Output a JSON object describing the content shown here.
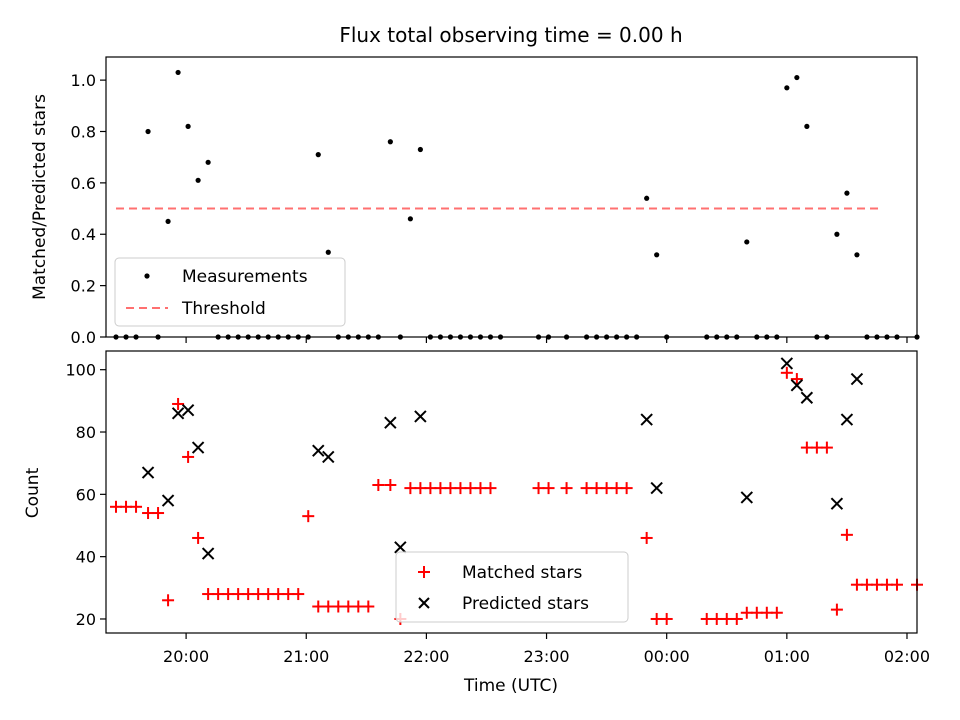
{
  "chart_data": [
    {
      "type": "scatter",
      "title": "Flux total observing time = 0.00 h",
      "xlabel": "",
      "ylabel": "Matched/Predicted stars",
      "xlim": [
        "19:20",
        "02:05"
      ],
      "ylim": [
        0,
        1.09
      ],
      "yticks": [
        "0.0",
        "0.2",
        "0.4",
        "0.6",
        "0.8",
        "1.0"
      ],
      "grid": false,
      "legend": {
        "placement": "lower-left",
        "entries": [
          "Measurements",
          "Threshold"
        ]
      },
      "threshold": {
        "name": "Threshold",
        "y": 0.5,
        "x_from": "19:25",
        "x_to": "01:47",
        "color": "#ff7070"
      },
      "series": [
        {
          "name": "Measurements",
          "color": "#000000",
          "points": [
            [
              "19:25",
              0
            ],
            [
              "19:30",
              0
            ],
            [
              "19:35",
              0
            ],
            [
              "19:41",
              0.8
            ],
            [
              "19:46",
              0
            ],
            [
              "19:51",
              0.45
            ],
            [
              "19:56",
              1.03
            ],
            [
              "20:01",
              0.82
            ],
            [
              "20:06",
              0.61
            ],
            [
              "20:11",
              0.68
            ],
            [
              "20:16",
              0
            ],
            [
              "20:21",
              0
            ],
            [
              "20:26",
              0
            ],
            [
              "20:31",
              0
            ],
            [
              "20:36",
              0
            ],
            [
              "20:41",
              0
            ],
            [
              "20:46",
              0
            ],
            [
              "20:51",
              0
            ],
            [
              "20:56",
              0
            ],
            [
              "21:01",
              0
            ],
            [
              "21:06",
              0.71
            ],
            [
              "21:11",
              0.33
            ],
            [
              "21:16",
              0
            ],
            [
              "21:21",
              0
            ],
            [
              "21:26",
              0
            ],
            [
              "21:31",
              0
            ],
            [
              "21:36",
              0
            ],
            [
              "21:42",
              0.76
            ],
            [
              "21:47",
              0
            ],
            [
              "21:52",
              0.46
            ],
            [
              "21:57",
              0.73
            ],
            [
              "22:02",
              0
            ],
            [
              "22:07",
              0
            ],
            [
              "22:12",
              0
            ],
            [
              "22:17",
              0
            ],
            [
              "22:22",
              0
            ],
            [
              "22:27",
              0
            ],
            [
              "22:32",
              0
            ],
            [
              "22:37",
              0
            ],
            [
              "22:56",
              0
            ],
            [
              "23:01",
              0
            ],
            [
              "23:10",
              0
            ],
            [
              "23:20",
              0
            ],
            [
              "23:25",
              0
            ],
            [
              "23:30",
              0
            ],
            [
              "23:35",
              0
            ],
            [
              "23:40",
              0
            ],
            [
              "23:45",
              0
            ],
            [
              "23:50",
              0.54
            ],
            [
              "23:55",
              0.32
            ],
            [
              "00:00",
              0
            ],
            [
              "00:20",
              0
            ],
            [
              "00:25",
              0
            ],
            [
              "00:30",
              0
            ],
            [
              "00:35",
              0
            ],
            [
              "00:40",
              0.37
            ],
            [
              "00:45",
              0
            ],
            [
              "00:50",
              0
            ],
            [
              "00:55",
              0
            ],
            [
              "01:00",
              0.97
            ],
            [
              "01:05",
              1.01
            ],
            [
              "01:10",
              0.82
            ],
            [
              "01:15",
              0
            ],
            [
              "01:20",
              0
            ],
            [
              "01:25",
              0.4
            ],
            [
              "01:30",
              0.56
            ],
            [
              "01:35",
              0.32
            ],
            [
              "01:40",
              0
            ],
            [
              "01:45",
              0
            ],
            [
              "01:50",
              0
            ],
            [
              "01:55",
              0
            ],
            [
              "02:05",
              0
            ]
          ]
        }
      ]
    },
    {
      "type": "scatter",
      "title": "",
      "xlabel": "Time (UTC)",
      "ylabel": "Count",
      "xlim": [
        "19:20",
        "02:05"
      ],
      "ylim": [
        15.5,
        106
      ],
      "xticks": [
        "20:00",
        "21:00",
        "22:00",
        "23:00",
        "00:00",
        "01:00",
        "02:00"
      ],
      "yticks": [
        "20",
        "40",
        "60",
        "80",
        "100"
      ],
      "grid": false,
      "legend": {
        "placement": "lower-center",
        "entries": [
          "Matched stars",
          "Predicted stars"
        ]
      },
      "series": [
        {
          "name": "Matched stars",
          "marker": "plus",
          "color": "#ff0000",
          "points": [
            [
              "19:25",
              56
            ],
            [
              "19:30",
              56
            ],
            [
              "19:35",
              56
            ],
            [
              "19:41",
              54
            ],
            [
              "19:46",
              54
            ],
            [
              "19:51",
              26
            ],
            [
              "19:56",
              89
            ],
            [
              "20:01",
              72
            ],
            [
              "20:06",
              46
            ],
            [
              "20:11",
              28
            ],
            [
              "20:16",
              28
            ],
            [
              "20:21",
              28
            ],
            [
              "20:26",
              28
            ],
            [
              "20:31",
              28
            ],
            [
              "20:36",
              28
            ],
            [
              "20:41",
              28
            ],
            [
              "20:46",
              28
            ],
            [
              "20:51",
              28
            ],
            [
              "20:56",
              28
            ],
            [
              "21:01",
              53
            ],
            [
              "21:06",
              24
            ],
            [
              "21:11",
              24
            ],
            [
              "21:16",
              24
            ],
            [
              "21:21",
              24
            ],
            [
              "21:26",
              24
            ],
            [
              "21:31",
              24
            ],
            [
              "21:36",
              63
            ],
            [
              "21:42",
              63
            ],
            [
              "21:47",
              20
            ],
            [
              "21:52",
              62
            ],
            [
              "21:57",
              62
            ],
            [
              "22:02",
              62
            ],
            [
              "22:07",
              62
            ],
            [
              "22:12",
              62
            ],
            [
              "22:17",
              62
            ],
            [
              "22:22",
              62
            ],
            [
              "22:27",
              62
            ],
            [
              "22:32",
              62
            ],
            [
              "22:56",
              62
            ],
            [
              "23:01",
              62
            ],
            [
              "23:10",
              62
            ],
            [
              "23:20",
              62
            ],
            [
              "23:25",
              62
            ],
            [
              "23:30",
              62
            ],
            [
              "23:35",
              62
            ],
            [
              "23:40",
              62
            ],
            [
              "23:50",
              46
            ],
            [
              "23:55",
              20
            ],
            [
              "00:00",
              20
            ],
            [
              "00:20",
              20
            ],
            [
              "00:25",
              20
            ],
            [
              "00:30",
              20
            ],
            [
              "00:35",
              20
            ],
            [
              "00:40",
              22
            ],
            [
              "00:45",
              22
            ],
            [
              "00:50",
              22
            ],
            [
              "00:55",
              22
            ],
            [
              "01:00",
              99
            ],
            [
              "01:05",
              97
            ],
            [
              "01:10",
              75
            ],
            [
              "01:15",
              75
            ],
            [
              "01:20",
              75
            ],
            [
              "01:25",
              23
            ],
            [
              "01:30",
              47
            ],
            [
              "01:35",
              31
            ],
            [
              "01:40",
              31
            ],
            [
              "01:45",
              31
            ],
            [
              "01:50",
              31
            ],
            [
              "01:55",
              31
            ],
            [
              "02:05",
              31
            ]
          ]
        },
        {
          "name": "Predicted stars",
          "marker": "x",
          "color": "#000000",
          "points": [
            [
              "19:41",
              67
            ],
            [
              "19:51",
              58
            ],
            [
              "19:56",
              86
            ],
            [
              "20:01",
              87
            ],
            [
              "20:06",
              75
            ],
            [
              "20:11",
              41
            ],
            [
              "21:06",
              74
            ],
            [
              "21:11",
              72
            ],
            [
              "21:42",
              83
            ],
            [
              "21:47",
              43
            ],
            [
              "21:57",
              85
            ],
            [
              "23:50",
              84
            ],
            [
              "23:55",
              62
            ],
            [
              "00:40",
              59
            ],
            [
              "01:00",
              102
            ],
            [
              "01:05",
              95
            ],
            [
              "01:10",
              91
            ],
            [
              "01:25",
              57
            ],
            [
              "01:30",
              84
            ],
            [
              "01:35",
              97
            ]
          ]
        }
      ]
    }
  ]
}
